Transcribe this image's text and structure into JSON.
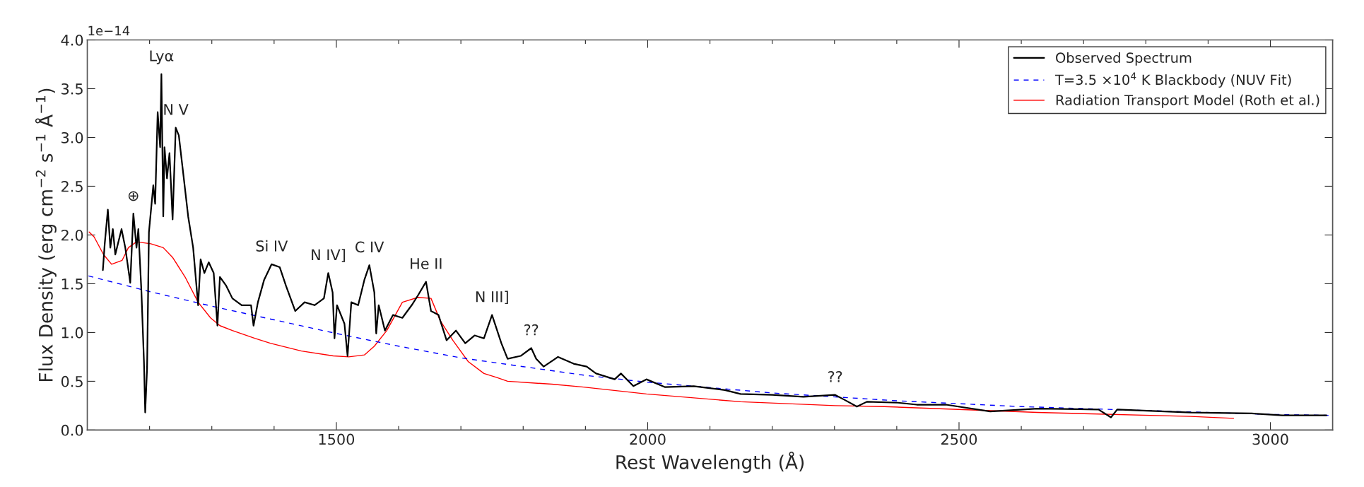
{
  "chart_data": {
    "type": "line",
    "xlabel": "Rest Wavelength (Å)",
    "ylabel": "Flux Density (erg cm$^{−2}$ s$^{−1}$ Å$^{−1}$)",
    "xlim": [
      1100,
      3100
    ],
    "xticks": [
      {
        "value": 1200,
        "label": null
      },
      {
        "value": 1300,
        "label": null
      },
      {
        "value": 1400,
        "label": null
      },
      1500,
      {
        "value": 1600,
        "label": null
      },
      {
        "value": 1700,
        "label": null
      },
      {
        "value": 1800,
        "label": null
      },
      {
        "value": 1900,
        "label": null
      },
      2000,
      {
        "value": 2100,
        "label": null
      },
      {
        "value": 2200,
        "label": null
      },
      {
        "value": 2300,
        "label": null
      },
      {
        "value": 2400,
        "label": null
      },
      2500,
      {
        "value": 2600,
        "label": null
      },
      {
        "value": 2700,
        "label": null
      },
      {
        "value": 2800,
        "label": null
      },
      {
        "value": 2900,
        "label": null
      },
      3000
    ],
    "ylim": [
      0,
      4.0
    ],
    "yticks": [
      {
        "value": 0,
        "label": "0.0"
      },
      0.5,
      {
        "value": 1,
        "label": "1.0"
      },
      1.5,
      {
        "value": 2,
        "label": "2.0"
      },
      2.5,
      {
        "value": 3,
        "label": "3.0"
      },
      3.5,
      {
        "value": 4,
        "label": "4.0"
      }
    ],
    "legend": "top right",
    "grid": false,
    "marker": "none",
    "series": [
      {
        "name": "Observed Spectrum",
        "color": "#000000",
        "line_style": "solid",
        "x": [
          1125,
          1128,
          1133,
          1137,
          1141,
          1145,
          1150,
          1155,
          1161,
          1169,
          1174,
          1179,
          1182,
          1187,
          1191,
          1193,
          1196,
          1199,
          1206,
          1209,
          1213,
          1217,
          1219,
          1222,
          1224,
          1228,
          1232,
          1237,
          1242,
          1247,
          1255,
          1262,
          1270,
          1278,
          1282,
          1288,
          1295,
          1303,
          1309,
          1313,
          1323,
          1333,
          1348,
          1363,
          1367,
          1374,
          1384,
          1396,
          1409,
          1419,
          1434,
          1449,
          1465,
          1480,
          1487,
          1494,
          1497,
          1501,
          1513,
          1518,
          1524,
          1535,
          1545,
          1553,
          1561,
          1564,
          1568,
          1578,
          1591,
          1606,
          1621,
          1631,
          1644,
          1652,
          1664,
          1677,
          1692,
          1707,
          1722,
          1737,
          1750,
          1765,
          1775,
          1796,
          1813,
          1821,
          1833,
          1856,
          1881,
          1902,
          1917,
          1947,
          1957,
          1977,
          1998,
          2028,
          2074,
          2124,
          2149,
          2200,
          2250,
          2301,
          2316,
          2336,
          2352,
          2402,
          2432,
          2479,
          2550,
          2626,
          2724,
          2744,
          2754,
          2872,
          2970,
          3019,
          3090
        ],
        "values": [
          1.64,
          1.91,
          2.26,
          1.87,
          2.06,
          1.8,
          1.93,
          2.06,
          1.87,
          1.51,
          2.22,
          1.87,
          2.06,
          1.41,
          0.7,
          0.18,
          0.63,
          2.03,
          2.51,
          2.32,
          3.26,
          2.9,
          3.65,
          2.19,
          2.9,
          2.58,
          2.84,
          2.16,
          3.1,
          3.02,
          2.58,
          2.19,
          1.87,
          1.28,
          1.75,
          1.61,
          1.72,
          1.61,
          1.07,
          1.57,
          1.48,
          1.35,
          1.28,
          1.28,
          1.07,
          1.31,
          1.54,
          1.7,
          1.67,
          1.48,
          1.22,
          1.31,
          1.28,
          1.35,
          1.61,
          1.41,
          0.94,
          1.28,
          1.09,
          0.76,
          1.31,
          1.28,
          1.54,
          1.69,
          1.41,
          0.99,
          1.28,
          1.02,
          1.18,
          1.15,
          1.28,
          1.38,
          1.52,
          1.22,
          1.18,
          0.92,
          1.02,
          0.89,
          0.97,
          0.94,
          1.18,
          0.89,
          0.73,
          0.76,
          0.84,
          0.73,
          0.65,
          0.75,
          0.68,
          0.65,
          0.58,
          0.52,
          0.58,
          0.45,
          0.52,
          0.44,
          0.45,
          0.41,
          0.37,
          0.36,
          0.34,
          0.36,
          0.31,
          0.24,
          0.29,
          0.28,
          0.26,
          0.26,
          0.19,
          0.22,
          0.21,
          0.13,
          0.21,
          0.18,
          0.17,
          0.15,
          0.15
        ]
      },
      {
        "name": "T=3.5 ×10$^{4}$ K Blackbody (NUV Fit)",
        "color": "#0000ff",
        "line_style": "dashed",
        "x": [
          1102,
          1200,
          1300,
          1400,
          1500,
          1600,
          1700,
          1800,
          1900,
          2000,
          2200,
          2400,
          2600,
          2800,
          3000,
          3100
        ],
        "values": [
          1.58,
          1.42,
          1.27,
          1.13,
          0.99,
          0.86,
          0.74,
          0.65,
          0.56,
          0.49,
          0.38,
          0.3,
          0.24,
          0.2,
          0.16,
          0.15
        ]
      },
      {
        "name": "Radiation Transport Model (Roth et al.)",
        "color": "#ff0000",
        "line_style": "solid",
        "x": [
          1103,
          1111,
          1126,
          1139,
          1156,
          1166,
          1179,
          1202,
          1222,
          1237,
          1257,
          1278,
          1298,
          1313,
          1333,
          1369,
          1394,
          1444,
          1495,
          1520,
          1545,
          1561,
          1581,
          1606,
          1631,
          1652,
          1667,
          1687,
          1712,
          1737,
          1757,
          1775,
          1846,
          1897,
          1998,
          2149,
          2301,
          2380,
          2626,
          2872,
          2941
        ],
        "values": [
          2.03,
          1.98,
          1.8,
          1.7,
          1.74,
          1.87,
          1.93,
          1.91,
          1.87,
          1.77,
          1.57,
          1.31,
          1.15,
          1.07,
          1.02,
          0.94,
          0.89,
          0.81,
          0.76,
          0.75,
          0.77,
          0.86,
          1.02,
          1.31,
          1.36,
          1.35,
          1.12,
          0.92,
          0.7,
          0.58,
          0.54,
          0.5,
          0.47,
          0.44,
          0.37,
          0.29,
          0.25,
          0.24,
          0.18,
          0.14,
          0.12
        ]
      }
    ],
    "annotations": [
      "1e−14",
      {
        "text": "Lyα",
        "x": 1219,
        "y": 3.65
      },
      {
        "text": "N V",
        "x": 1242,
        "y": 3.1
      },
      {
        "text": "⊕",
        "x": 1174,
        "y": 2.22
      },
      {
        "text": "Si IV",
        "x": 1396,
        "y": 1.7
      },
      {
        "text": "N IV]",
        "x": 1487,
        "y": 1.61
      },
      {
        "text": "C IV",
        "x": 1553,
        "y": 1.69
      },
      {
        "text": "He II",
        "x": 1644,
        "y": 1.52
      },
      {
        "text": "N III]",
        "x": 1750,
        "y": 1.18
      },
      {
        "text": "??",
        "x": 1813,
        "y": 0.84
      },
      {
        "text": "??",
        "x": 2301,
        "y": 0.36
      }
    ]
  }
}
